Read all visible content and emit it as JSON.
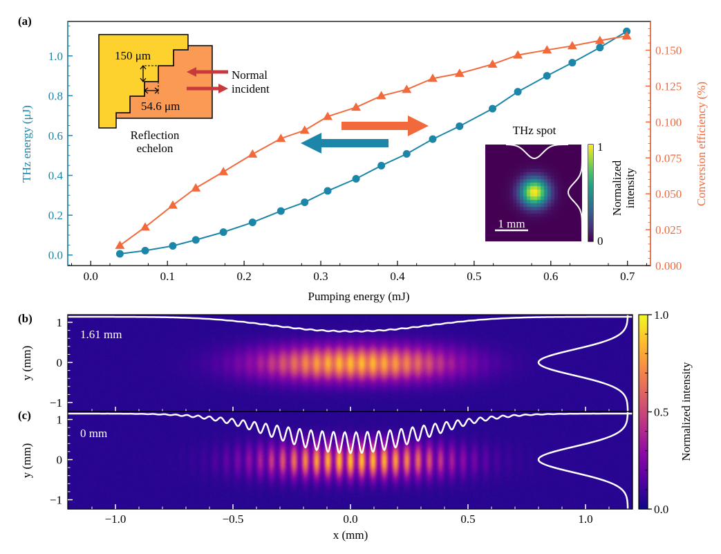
{
  "panel_labels": {
    "a": "(a)",
    "b": "(b)",
    "c": "(c)"
  },
  "colors": {
    "thz_energy": "#1b86a8",
    "efficiency": "#f2693c",
    "incident_arrow": "#c8393b",
    "echelon_front": "#fdd22f",
    "echelon_back": "#fb9a55"
  },
  "chart_data": [
    {
      "type": "line",
      "xlabel": "Pumping energy (mJ)",
      "ylabel": "THz energy (μJ)",
      "y2label": "Conversion efficiency (%)",
      "xlim": [
        -0.03,
        0.73
      ],
      "ylim": [
        -0.053,
        1.173
      ],
      "y2lim": [
        0,
        0.17
      ],
      "xticks": [
        "0.0",
        "0.1",
        "0.2",
        "0.3",
        "0.4",
        "0.5",
        "0.6",
        "0.7"
      ],
      "yticks": [
        "0.0",
        "0.2",
        "0.4",
        "0.6",
        "0.8",
        "1.0"
      ],
      "y2ticks": [
        "0.000",
        "0.025",
        "0.050",
        "0.075",
        "0.100",
        "0.125",
        "0.150"
      ],
      "x": [
        0.038,
        0.071,
        0.107,
        0.137,
        0.173,
        0.211,
        0.248,
        0.279,
        0.309,
        0.346,
        0.379,
        0.412,
        0.446,
        0.481,
        0.524,
        0.557,
        0.595,
        0.628,
        0.664,
        0.699
      ],
      "series": [
        {
          "axis": "left",
          "marker": "circle",
          "color": "#1b86a8",
          "values": [
            0.006,
            0.022,
            0.046,
            0.076,
            0.115,
            0.164,
            0.221,
            0.265,
            0.322,
            0.383,
            0.449,
            0.508,
            0.582,
            0.647,
            0.735,
            0.82,
            0.9,
            0.966,
            1.042,
            1.123
          ]
        },
        {
          "axis": "right",
          "marker": "triangle",
          "color": "#f2693c",
          "values": [
            0.014,
            0.0268,
            0.042,
            0.054,
            0.0653,
            0.0776,
            0.0885,
            0.0942,
            0.1038,
            0.1102,
            0.1182,
            0.1226,
            0.1303,
            0.1338,
            0.1402,
            0.1466,
            0.1501,
            0.153,
            0.1567,
            0.1599
          ]
        }
      ],
      "grid": false,
      "annotations": {
        "echelon_step_height": "150 μm",
        "echelon_step_width": "54.6 μm",
        "incident_line1": "Normal",
        "incident_line2": "incident",
        "echelon_line1": "Reflection",
        "echelon_line2": "echelon"
      },
      "inset": {
        "type": "heatmap",
        "title": "THz spot",
        "scale_bar": "1 mm",
        "colormap": "viridis",
        "colorbar_label_line1": "Normalized",
        "colorbar_label_line2": "intensity",
        "colorbar_ticks": [
          "1",
          "0"
        ]
      }
    },
    {
      "type": "heatmap",
      "panel": "b",
      "annotation": "1.61 mm",
      "ylabel": "y (mm)",
      "yticks": [
        "1",
        "0",
        "−1"
      ],
      "xlim": [
        -1.2,
        1.2
      ],
      "ylim": [
        -1.2,
        1.2
      ],
      "colormap": "plasma"
    },
    {
      "type": "heatmap",
      "panel": "c",
      "annotation": "0 mm",
      "ylabel": "y (mm)",
      "xlabel": "x (mm)",
      "yticks": [
        "1",
        "0",
        "−1"
      ],
      "xticks": [
        "−1.0",
        "−0.5",
        "0.0",
        "0.5",
        "1.0"
      ],
      "xlim": [
        -1.2,
        1.2
      ],
      "ylim": [
        -1.2,
        1.2
      ],
      "colormap": "plasma",
      "colorbar_label": "Normalized intensity",
      "colorbar_ticks": [
        "1.0",
        "0.5",
        "0.0"
      ]
    }
  ]
}
